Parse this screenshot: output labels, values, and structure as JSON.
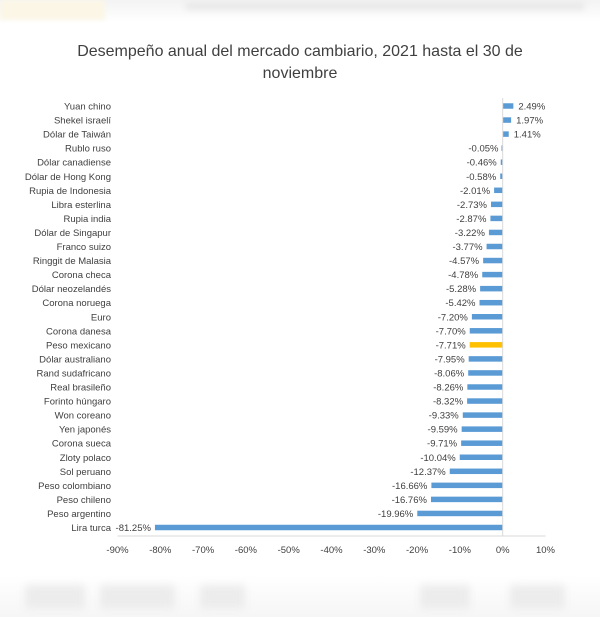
{
  "chart_data": {
    "type": "bar",
    "orientation": "horizontal",
    "title": "Desempeño anual del mercado cambiario, 2021 hasta el 30 de noviembre",
    "categories": [
      "Yuan chino",
      "Shekel israelí",
      "Dólar de Taiwán",
      "Rublo ruso",
      "Dólar canadiense",
      "Dólar de Hong Kong",
      "Rupia de Indonesia",
      "Libra esterlina",
      "Rupia india",
      "Dólar de Singapur",
      "Franco suizo",
      "Ringgit de Malasia",
      "Corona checa",
      "Dólar neozelandés",
      "Corona noruega",
      "Euro",
      "Corona danesa",
      "Peso mexicano",
      "Dólar australiano",
      "Rand sudafricano",
      "Real brasileño",
      "Forinto húngaro",
      "Won coreano",
      "Yen japonés",
      "Corona sueca",
      "Zloty polaco",
      "Sol peruano",
      "Peso colombiano",
      "Peso chileno",
      "Peso argentino",
      "Lira turca"
    ],
    "values": [
      2.49,
      1.97,
      1.41,
      -0.05,
      -0.46,
      -0.58,
      -2.01,
      -2.73,
      -2.87,
      -3.22,
      -3.77,
      -4.57,
      -4.78,
      -5.28,
      -5.42,
      -7.2,
      -7.7,
      -7.71,
      -7.95,
      -8.06,
      -8.26,
      -8.32,
      -9.33,
      -9.59,
      -9.71,
      -10.04,
      -12.37,
      -16.66,
      -16.76,
      -19.96,
      -81.25
    ],
    "data_labels": [
      "2.49%",
      "1.97%",
      "1.41%",
      "-0.05%",
      "-0.46%",
      "-0.58%",
      "-2.01%",
      "-2.73%",
      "-2.87%",
      "-3.22%",
      "-3.77%",
      "-4.57%",
      "-4.78%",
      "-5.28%",
      "-5.42%",
      "-7.20%",
      "-7.70%",
      "-7.71%",
      "-7.95%",
      "-8.06%",
      "-8.26%",
      "-8.32%",
      "-9.33%",
      "-9.59%",
      "-9.71%",
      "-10.04%",
      "-12.37%",
      "-16.66%",
      "-16.76%",
      "-19.96%",
      "-81.25%"
    ],
    "xlim": [
      -90,
      10
    ],
    "x_ticks": [
      -90,
      -80,
      -70,
      -60,
      -50,
      -40,
      -30,
      -20,
      -10,
      0,
      10
    ],
    "x_tick_labels": [
      "-90%",
      "-80%",
      "-70%",
      "-60%",
      "-50%",
      "-40%",
      "-30%",
      "-20%",
      "-10%",
      "0%",
      "10%"
    ],
    "grid": false,
    "legend": "none",
    "colors": {
      "default_bar": "#5b9bd5",
      "highlight_bar": "#ffc000",
      "highlight_category": "Peso mexicano",
      "text": "#404040",
      "axis": "#d9d9d9"
    }
  }
}
